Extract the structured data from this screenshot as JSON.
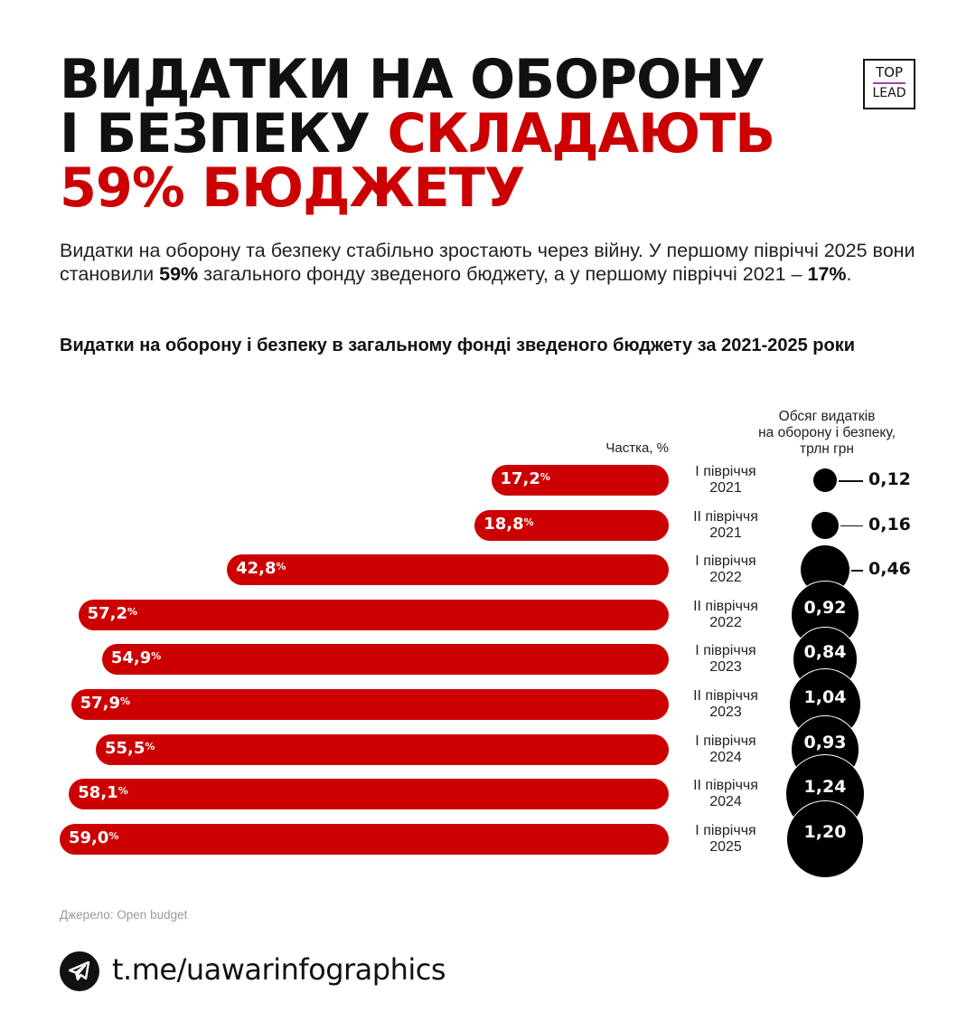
{
  "header": {
    "title_line1": "ВИДАТКИ НА ОБОРОНУ",
    "title_line2_black": "І БЕЗПЕКУ ",
    "title_line2_red": "СКЛАДАЮТЬ",
    "title_line3_red": "59% БЮДЖЕТУ",
    "logo_top": "TOP",
    "logo_bottom": "LEAD"
  },
  "intro": {
    "part1": "Видатки на оборону та безпеку стабільно зростають через війну. У першому півріччі 2025 вони становили ",
    "bold1": "59%",
    "part2": " загального фонду зведеного бюджету, а у першому півріччі 2021 – ",
    "bold2": "17%",
    "part3": "."
  },
  "chart_title": "Видатки на оборону і безпеку в загальному фонді зведеного бюджету за 2021-2025 роки",
  "colors": {
    "accent_red": "#cc0001",
    "bubble": "#000000",
    "logo_line": "#a63fa0"
  },
  "chart_data": {
    "type": "bar",
    "title": "Видатки на оборону і безпеку в загальному фонді зведеного бюджету за 2021-2025 роки",
    "xlabel": "Частка, %",
    "ylabel": "",
    "orientation": "horizontal-left",
    "categories": [
      "І півріччя 2021",
      "ІІ півріччя 2021",
      "І півріччя 2022",
      "ІІ півріччя 2022",
      "І півріччя 2023",
      "ІІ півріччя 2023",
      "І півріччя 2024",
      "ІІ півріччя 2024",
      "І півріччя 2025"
    ],
    "series": [
      {
        "name": "Частка, %",
        "values": [
          17.2,
          18.8,
          42.8,
          57.2,
          54.9,
          57.9,
          55.5,
          58.1,
          59.0
        ]
      },
      {
        "name": "Обсяг видатків на оборону і безпеку, трлн грн",
        "values": [
          0.12,
          0.16,
          0.46,
          0.92,
          0.84,
          1.04,
          0.93,
          1.24,
          1.2
        ],
        "display": "bubble"
      }
    ],
    "labels_share": [
      "17,2",
      "18,8",
      "42,8",
      "57,2",
      "54,9",
      "57,9",
      "55,5",
      "58,1",
      "59,0"
    ],
    "labels_volume": [
      "0,12",
      "0,16",
      "0,46",
      "0,92",
      "0,84",
      "1,04",
      "0,93",
      "1,24",
      "1,20"
    ],
    "period_line1": [
      "І півріччя",
      "ІІ півріччя",
      "І півріччя",
      "ІІ півріччя",
      "І півріччя",
      "ІІ півріччя",
      "І півріччя",
      "ІІ півріччя",
      "І півріччя"
    ],
    "period_line2": [
      "2021",
      "2021",
      "2022",
      "2022",
      "2023",
      "2023",
      "2024",
      "2024",
      "2025"
    ],
    "share_header": "Частка, %",
    "volume_header": [
      "Обсяг видатків",
      "на оборону і безпеку,",
      "трлн грн"
    ],
    "percent_sign": "%"
  },
  "footer": {
    "source": "Джерело: Open budget",
    "url": "t.me/uawarinfographics"
  }
}
